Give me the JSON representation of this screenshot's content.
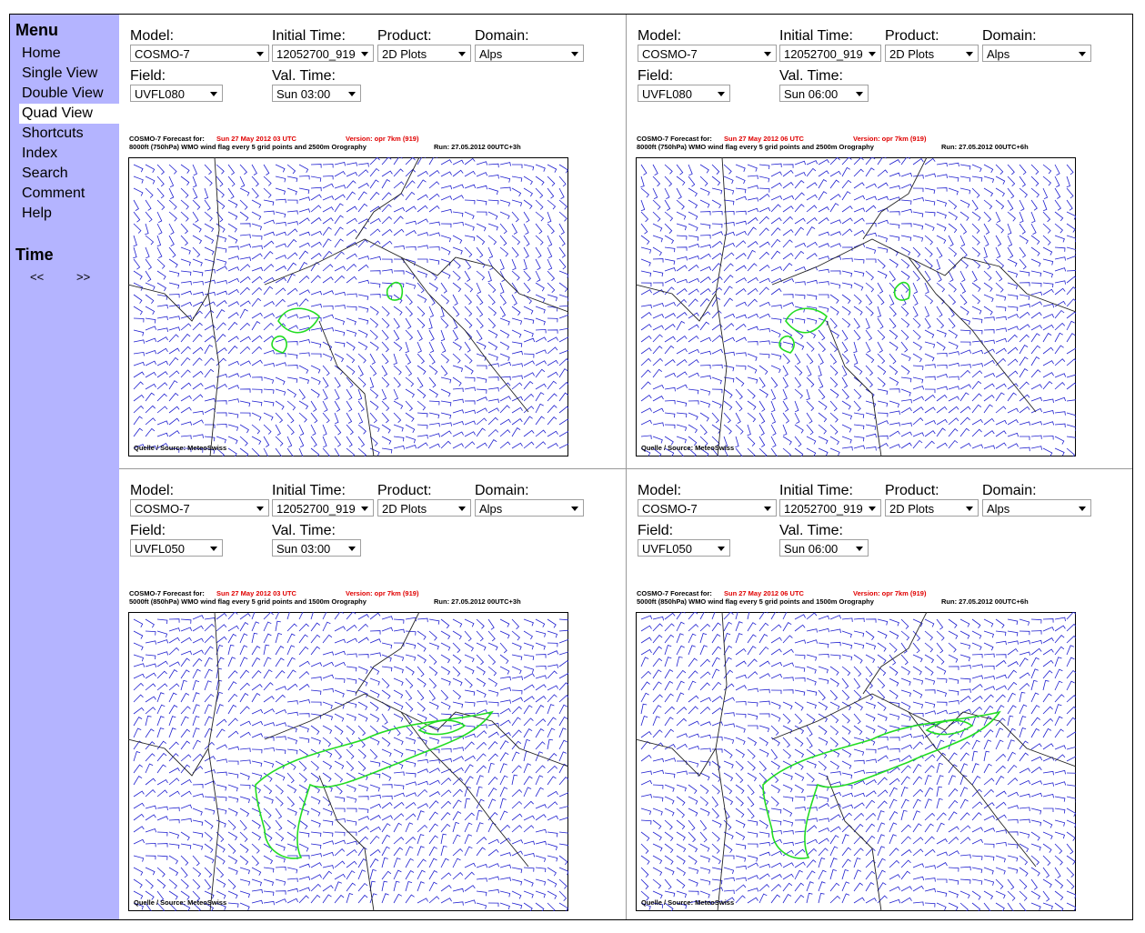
{
  "menu": {
    "title": "Menu",
    "items": [
      "Home",
      "Single View",
      "Double View",
      "Quad View",
      "Shortcuts",
      "Index",
      "Search",
      "Comment",
      "Help"
    ],
    "active": 3,
    "time_title": "Time",
    "nav": [
      "<<",
      ">>"
    ]
  },
  "panels": [
    {
      "model_label": "Model:",
      "model": "COSMO-7",
      "initial_time_label": "Initial Time:",
      "initial_time": "12052700_919",
      "product_label": "Product:",
      "product": "2D Plots",
      "domain_label": "Domain:",
      "domain": "Alps",
      "field_label": "Field:",
      "field": "UVFL080",
      "val_time_label": "Val. Time:",
      "val_time": "Sun 03:00",
      "forecast_for": "COSMO-7 Forecast for:",
      "date": "Sun 27 May 2012 03 UTC",
      "version": "Version: opr 7km (919)",
      "description": "8000ft (750hPa) WMO wind flag every 5 grid points and 2500m Orography",
      "run": "Run: 27.05.2012 00UTC+3h",
      "source": "Quelle / Source: MeteoSwiss"
    },
    {
      "model_label": "Model:",
      "model": "COSMO-7",
      "initial_time_label": "Initial Time:",
      "initial_time": "12052700_919",
      "product_label": "Product:",
      "product": "2D Plots",
      "domain_label": "Domain:",
      "domain": "Alps",
      "field_label": "Field:",
      "field": "UVFL080",
      "val_time_label": "Val. Time:",
      "val_time": "Sun 06:00",
      "forecast_for": "COSMO-7 Forecast for:",
      "date": "Sun 27 May 2012 06 UTC",
      "version": "Version: opr 7km (919)",
      "description": "8000ft (750hPa) WMO wind flag every 5 grid points and 2500m Orography",
      "run": "Run: 27.05.2012 00UTC+6h",
      "source": "Quelle / Source: MeteoSwiss"
    },
    {
      "model_label": "Model:",
      "model": "COSMO-7",
      "initial_time_label": "Initial Time:",
      "initial_time": "12052700_919",
      "product_label": "Product:",
      "product": "2D Plots",
      "domain_label": "Domain:",
      "domain": "Alps",
      "field_label": "Field:",
      "field": "UVFL050",
      "val_time_label": "Val. Time:",
      "val_time": "Sun 03:00",
      "forecast_for": "COSMO-7 Forecast for:",
      "date": "Sun 27 May 2012 03 UTC",
      "version": "Version: opr 7km (919)",
      "description": "5000ft (850hPa) WMO wind flag every 5 grid points and 1500m Orography",
      "run": "Run: 27.05.2012 00UTC+3h",
      "source": "Quelle / Source: MeteoSwiss"
    },
    {
      "model_label": "Model:",
      "model": "COSMO-7",
      "initial_time_label": "Initial Time:",
      "initial_time": "12052700_919",
      "product_label": "Product:",
      "product": "2D Plots",
      "domain_label": "Domain:",
      "domain": "Alps",
      "field_label": "Field:",
      "field": "UVFL050",
      "val_time_label": "Val. Time:",
      "val_time": "Sun 06:00",
      "forecast_for": "COSMO-7 Forecast for:",
      "date": "Sun 27 May 2012 06 UTC",
      "version": "Version: opr 7km (919)",
      "description": "5000ft (850hPa) WMO wind flag every 5 grid points and 1500m Orography",
      "run": "Run: 27.05.2012 00UTC+6h",
      "source": "Quelle / Source: MeteoSwiss"
    }
  ]
}
